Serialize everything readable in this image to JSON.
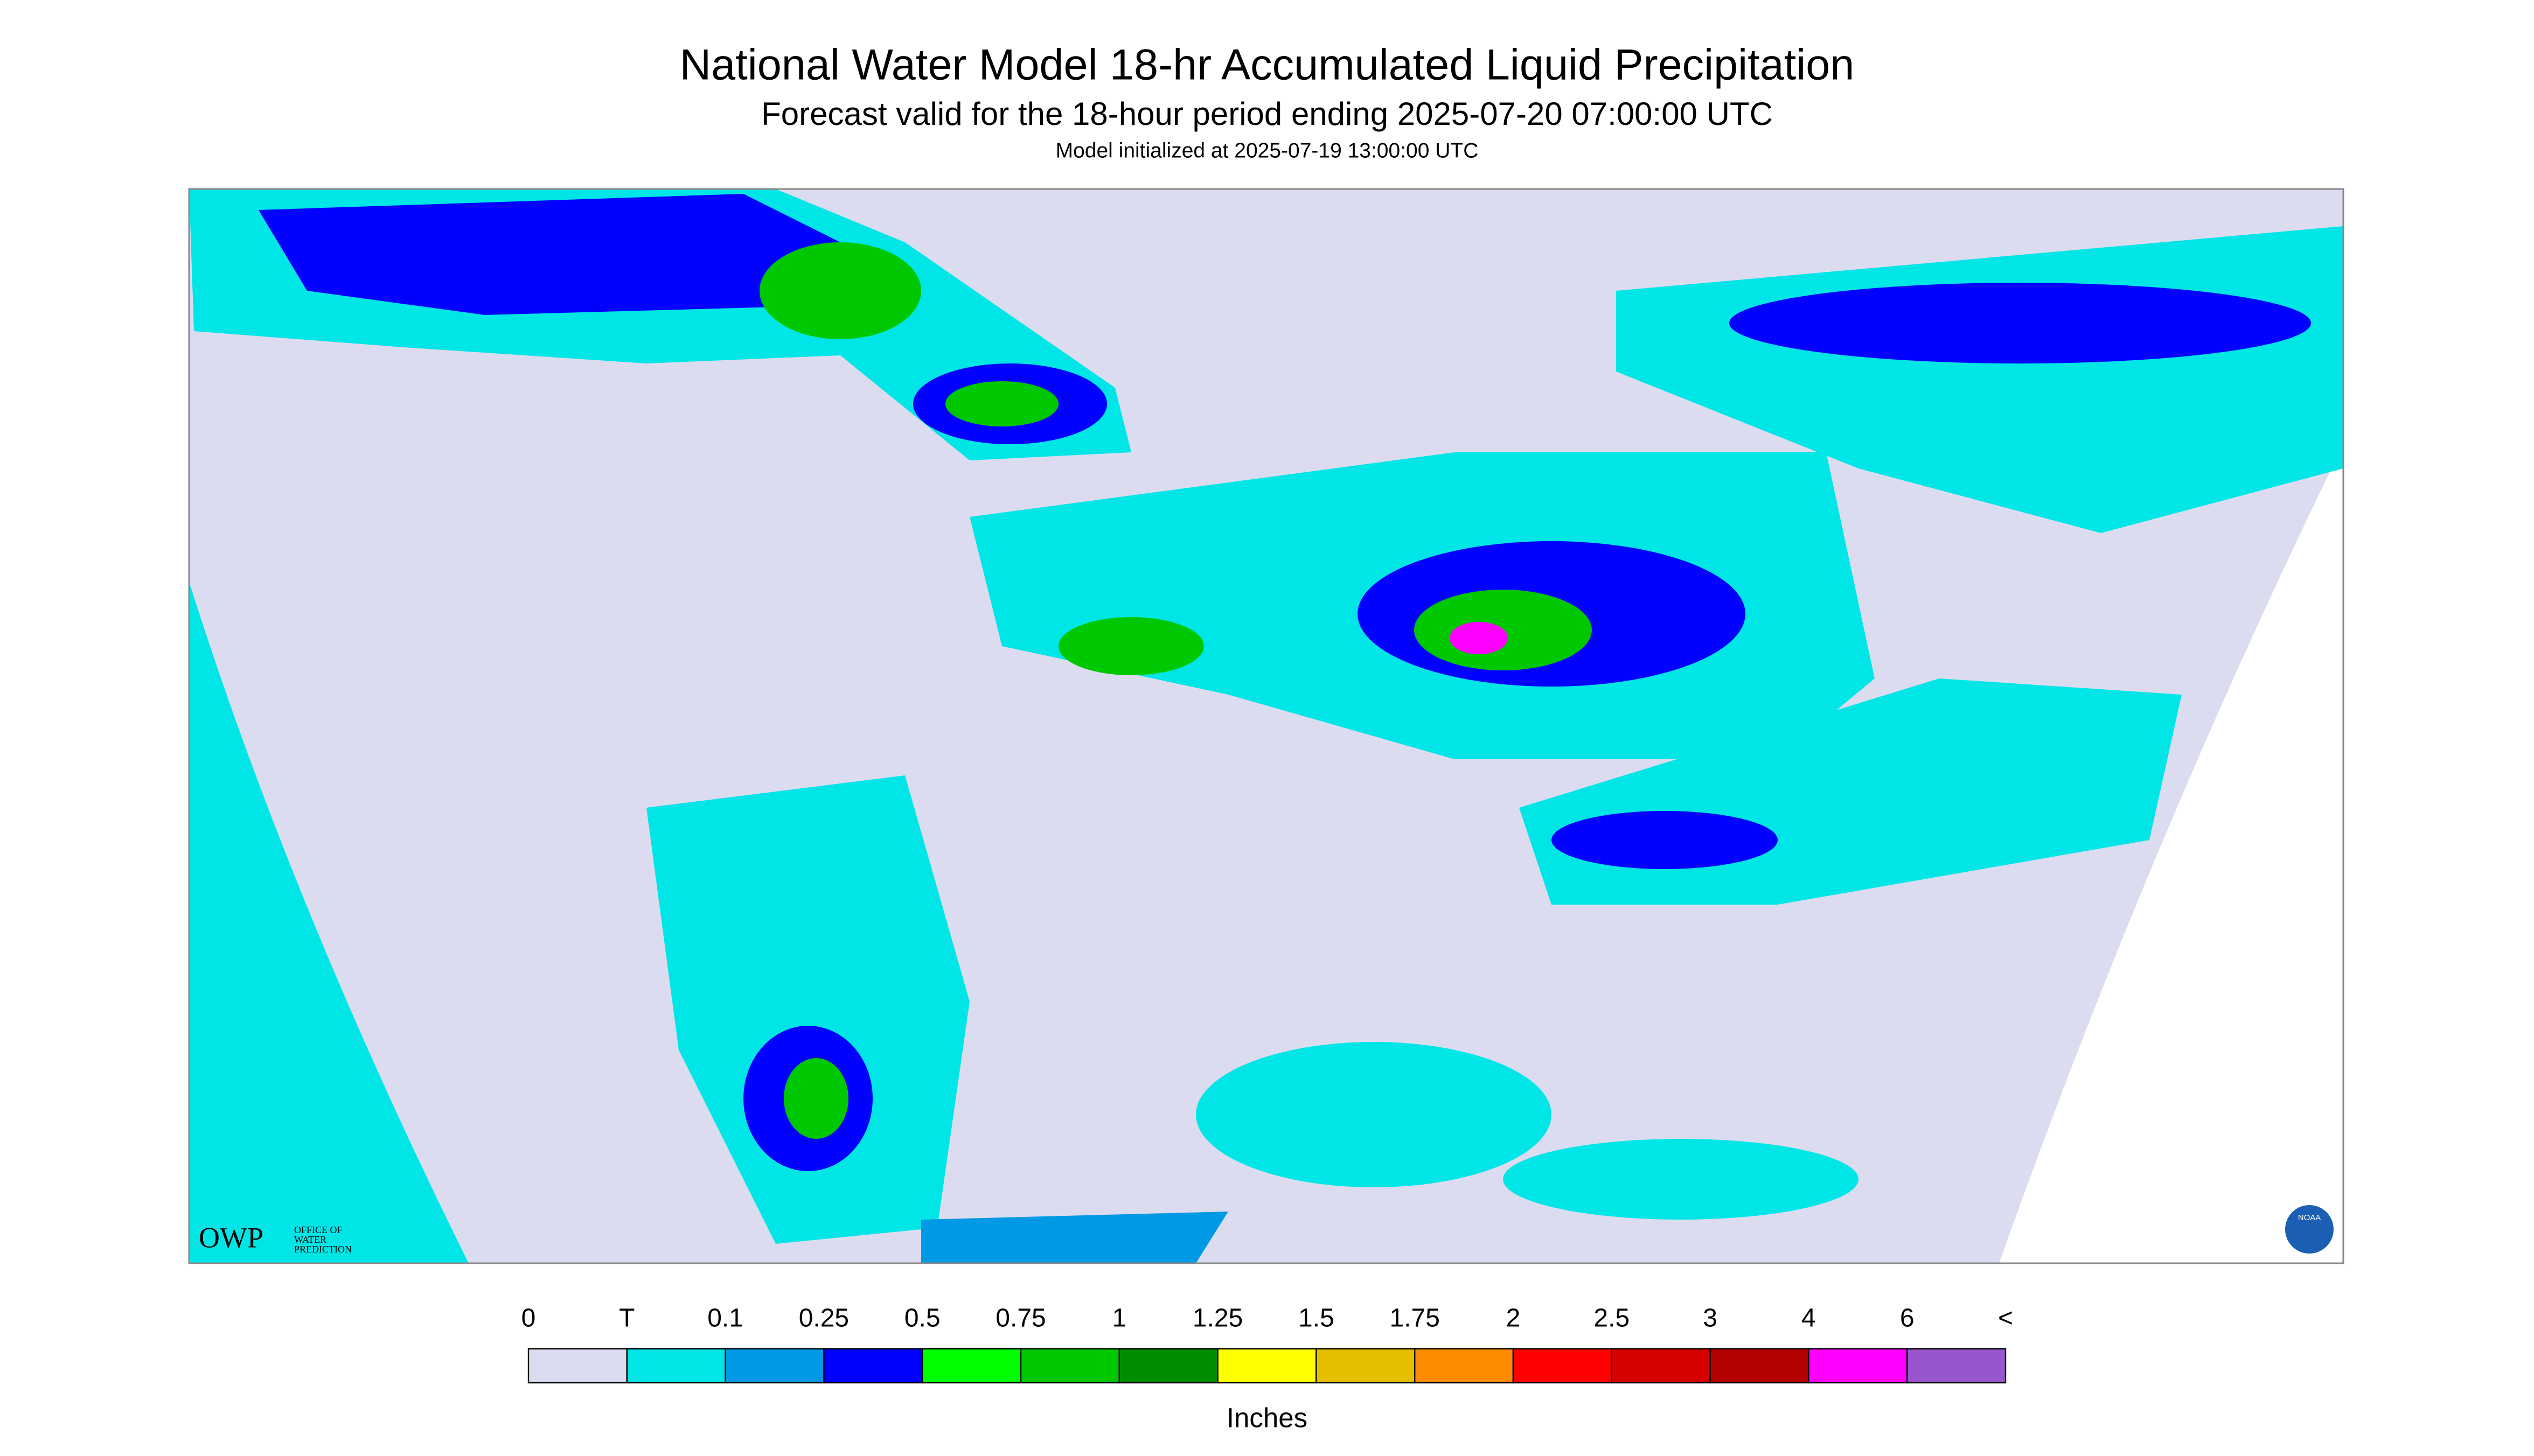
{
  "header": {
    "title": "National Water Model 18-hr Accumulated Liquid Precipitation",
    "subtitle": "Forecast valid for the 18-hour period ending 2025-07-20 07:00:00 UTC",
    "note": "Model initialized at 2025-07-19 13:00:00 UTC"
  },
  "logos": {
    "owp": "OWP",
    "owp_text": [
      "OFFICE OF",
      "WATER",
      "PREDICTION"
    ],
    "noaa": "NOAA"
  },
  "legend": {
    "labels": [
      "0",
      "T",
      "0.1",
      "0.25",
      "0.5",
      "0.75",
      "1",
      "1.25",
      "1.5",
      "1.75",
      "2",
      "2.5",
      "3",
      "4",
      "6",
      "<"
    ],
    "colors": [
      "#dcdcf0",
      "#00e6e6",
      "#0099e6",
      "#0000ff",
      "#00ff00",
      "#00c800",
      "#008c00",
      "#ffff00",
      "#e6be00",
      "#ff8c00",
      "#ff0000",
      "#d70000",
      "#b40000",
      "#ff00ff",
      "#9955cc"
    ],
    "units": "Inches"
  }
}
